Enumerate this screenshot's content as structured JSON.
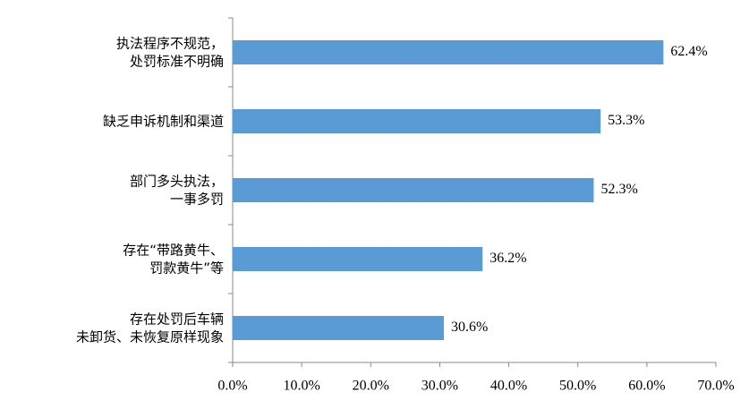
{
  "chart_data": {
    "type": "hbar",
    "categories": [
      "执法程序不规范，\n处罚标准不明确",
      "缺乏申诉机制和渠道",
      "部门多头执法，\n一事多罚",
      "存在“带路黄牛、\n罚款黄牛”等",
      "存在处罚后车辆\n未卸货、未恢复原样现象"
    ],
    "values": [
      62.4,
      53.3,
      52.3,
      36.2,
      30.6
    ],
    "value_labels": [
      "62.4%",
      "53.3%",
      "52.3%",
      "36.2%",
      "30.6%"
    ],
    "color": "#5b9bd5",
    "xlim": [
      0,
      70
    ],
    "xticks": [
      {
        "value": 0,
        "label": "0.0%"
      },
      {
        "value": 10,
        "label": "10.0%"
      },
      {
        "value": 20,
        "label": "20.0%"
      },
      {
        "value": 30,
        "label": "30.0%"
      },
      {
        "value": 40,
        "label": "40.0%"
      },
      {
        "value": 50,
        "label": "50.0%"
      },
      {
        "value": 60,
        "label": "60.0%"
      },
      {
        "value": 70,
        "label": "70.0%"
      }
    ]
  }
}
